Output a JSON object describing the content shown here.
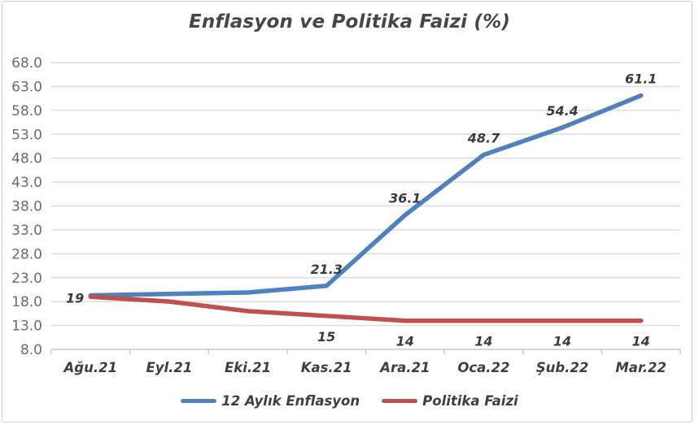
{
  "chart_data": {
    "type": "line",
    "title": "Enflasyon ve Politika Faizi (%)",
    "categories": [
      "Ağu.21",
      "Eyl.21",
      "Eki.21",
      "Kas.21",
      "Ara.21",
      "Oca.22",
      "Şub.22",
      "Mar.22"
    ],
    "y_axis": {
      "min": 8,
      "max": 68,
      "step": 5,
      "ticks": [
        {
          "v": 68,
          "label": "68.0"
        },
        {
          "v": 63,
          "label": "63.0"
        },
        {
          "v": 58,
          "label": "58.0"
        },
        {
          "v": 53,
          "label": "53.0"
        },
        {
          "v": 48,
          "label": "48.0"
        },
        {
          "v": 43,
          "label": "43.0"
        },
        {
          "v": 38,
          "label": "38.0"
        },
        {
          "v": 33,
          "label": "33.0"
        },
        {
          "v": 28,
          "label": "28.0"
        },
        {
          "v": 23,
          "label": "23.0"
        },
        {
          "v": 18,
          "label": "18.0"
        },
        {
          "v": 13,
          "label": "13.0"
        },
        {
          "v": 8,
          "label": "8.0"
        }
      ]
    },
    "series": [
      {
        "name": "12 Aylık Enflasyon",
        "color": "#4F81BD",
        "values": [
          19.3,
          19.6,
          19.9,
          21.3,
          36.1,
          48.7,
          54.4,
          61.1
        ],
        "data_labels": [
          "",
          "",
          "",
          "21.3",
          "36.1",
          "48.7",
          "54.4",
          "61.1"
        ],
        "label_positions": [
          "",
          "",
          "",
          "above",
          "above",
          "above",
          "above",
          "above"
        ]
      },
      {
        "name": "Politika Faizi",
        "color": "#C0504D",
        "values": [
          19,
          18,
          16,
          15,
          14,
          14,
          14,
          14
        ],
        "data_labels": [
          "19",
          "",
          "",
          "15",
          "14",
          "14",
          "14",
          "14"
        ],
        "label_positions": [
          "left",
          "",
          "",
          "below",
          "below",
          "below",
          "below",
          "below"
        ]
      }
    ],
    "legend_position": "bottom",
    "grid": true,
    "colors": {
      "gridline": "#dcdcdc",
      "axis_line": "#c6c9cc",
      "title_text": "#464646",
      "axis_text": "#6b6b6b",
      "label_text": "#3b3b3b"
    }
  }
}
